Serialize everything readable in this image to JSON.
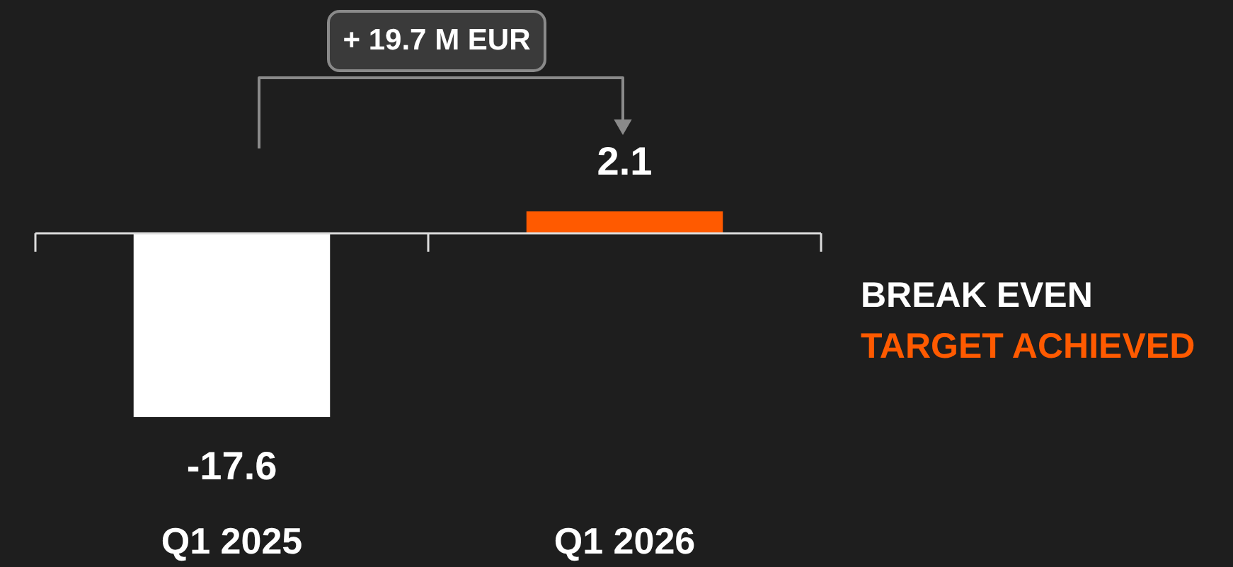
{
  "chart_data": {
    "type": "bar",
    "categories": [
      "Q1 2025",
      "Q1 2026"
    ],
    "values": [
      -17.6,
      2.1
    ],
    "colors": [
      "#ffffff",
      "#ff5a00"
    ],
    "data_labels": true,
    "annotations": [
      "+ 19.7 M EUR",
      "BREAK EVEN",
      "TARGET ACHIEVED"
    ]
  }
}
